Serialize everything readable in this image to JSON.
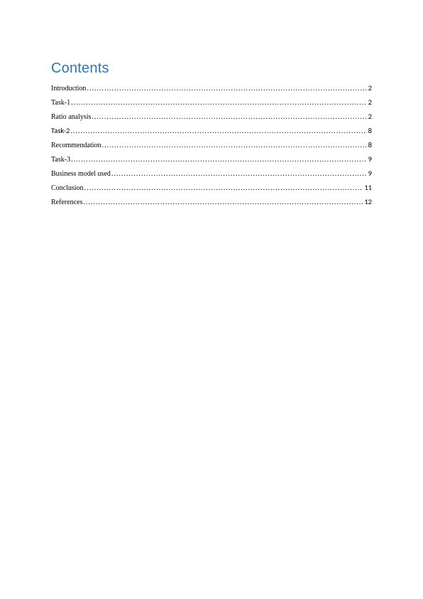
{
  "heading": "Contents",
  "heading_color": "#2e74b5",
  "heading_fontsize": 20,
  "entry_fontsize": 10,
  "text_color": "#000000",
  "background_color": "#ffffff",
  "toc": [
    {
      "label": "Introduction",
      "page": "2",
      "alt_font": false
    },
    {
      "label": "Task-1",
      "page": "2",
      "alt_font": false
    },
    {
      "label": "Ratio analysis",
      "page": "2",
      "alt_font": false
    },
    {
      "label": "Task-2",
      "page": "8",
      "alt_font": true
    },
    {
      "label": "Recommendation",
      "page": "8",
      "alt_font": false
    },
    {
      "label": "Task-3",
      "page": "9",
      "alt_font": false
    },
    {
      "label": "Business model used",
      "page": "9",
      "alt_font": false
    },
    {
      "label": "Conclusion",
      "page": "11",
      "alt_font": false
    },
    {
      "label": "References",
      "page": "12",
      "alt_font": false
    }
  ]
}
